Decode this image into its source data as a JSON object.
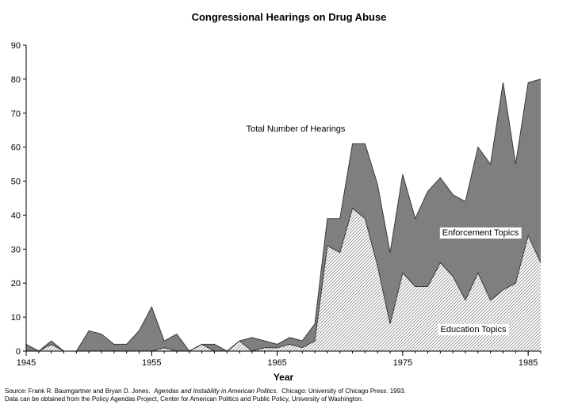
{
  "chart_data": {
    "type": "area",
    "title": "Congressional Hearings on Drug Abuse",
    "xlabel": "Year",
    "ylabel": "",
    "xlim": [
      1945,
      1986
    ],
    "ylim": [
      0,
      90
    ],
    "x_ticks": [
      "1945",
      "1955",
      "1965",
      "1975",
      "1985"
    ],
    "y_ticks": [
      "0",
      "10",
      "20",
      "30",
      "40",
      "50",
      "60",
      "70",
      "80",
      "90"
    ],
    "grid": false,
    "x": [
      1945,
      1946,
      1947,
      1948,
      1949,
      1950,
      1951,
      1952,
      1953,
      1954,
      1955,
      1956,
      1957,
      1958,
      1959,
      1960,
      1961,
      1962,
      1963,
      1964,
      1965,
      1966,
      1967,
      1968,
      1969,
      1970,
      1971,
      1972,
      1973,
      1974,
      1975,
      1976,
      1977,
      1978,
      1979,
      1980,
      1981,
      1982,
      1983,
      1984,
      1985,
      1986
    ],
    "series": [
      {
        "name": "Total Number of Hearings",
        "color": "#7f7f7f",
        "values": [
          2,
          0,
          3,
          0,
          0,
          6,
          5,
          2,
          2,
          6,
          13,
          3,
          5,
          0,
          2,
          2,
          0,
          3,
          4,
          3,
          2,
          4,
          3,
          8,
          39,
          39,
          61,
          61,
          49,
          29,
          52,
          39,
          47,
          51,
          46,
          44,
          60,
          55,
          79,
          55,
          79,
          80
        ]
      },
      {
        "name": "Education Topics",
        "color": "#e0e0e0",
        "values": [
          0,
          0,
          2,
          0,
          0,
          0,
          0,
          0,
          0,
          0,
          0,
          1,
          0,
          0,
          2,
          0,
          0,
          3,
          0,
          1,
          1,
          2,
          1,
          3,
          31,
          29,
          42,
          39,
          25,
          8,
          23,
          19,
          19,
          26,
          22,
          15,
          23,
          15,
          18,
          20,
          34,
          26
        ]
      }
    ],
    "annotations": [
      {
        "text": "Total Number of Hearings"
      },
      {
        "text": "Enforcement Topics"
      },
      {
        "text": "Education Topics"
      }
    ]
  },
  "source": {
    "line1_prefix": "Source: Frank R. Baumgartner and Bryan D. Jones.",
    "line1_book": "Agendas and Instability in American Politics.",
    "line1_suffix": "Chicago: University of Chicago Press. 1993.",
    "line2": "Data can be obtained from the Policy Agendas Project, Center for American Politics and Public Policy, University of Washington."
  }
}
